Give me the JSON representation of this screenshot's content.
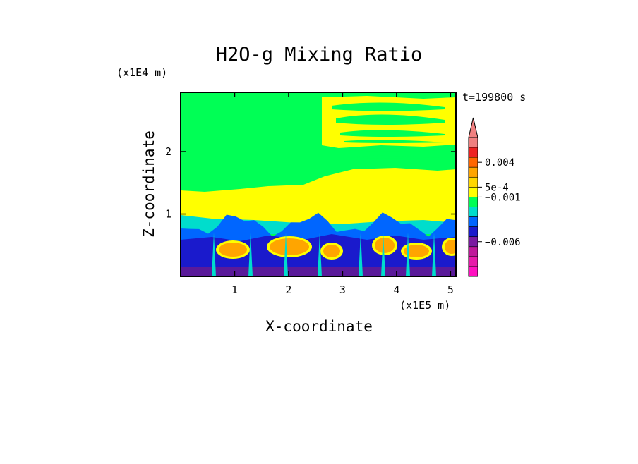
{
  "chart_data": {
    "type": "heatmap",
    "title": "H2O-g Mixing Ratio",
    "xlabel": "X-coordinate",
    "ylabel": "Z-coordinate",
    "x_unit": "(x1E5 m)",
    "y_unit": "(x1E4 m)",
    "time_label": "t=199800 s",
    "xlim": [
      0.0,
      5.1
    ],
    "ylim": [
      0.0,
      2.95
    ],
    "x_ticks": [
      {
        "value": 1,
        "label": "1"
      },
      {
        "value": 2,
        "label": "2"
      },
      {
        "value": 3,
        "label": "3"
      },
      {
        "value": 4,
        "label": "4"
      },
      {
        "value": 5,
        "label": "5"
      }
    ],
    "y_ticks": [
      {
        "value": 1,
        "label": "1"
      },
      {
        "value": 2,
        "label": "2"
      }
    ],
    "colorbar": {
      "levels": [
        "#f08080",
        "#ee2222",
        "#ff6600",
        "#ffa500",
        "#ffd700",
        "#ffff00",
        "#00ff55",
        "#00ddcc",
        "#0066ff",
        "#1a1acc",
        "#7a1aa0",
        "#c0189a",
        "#e81aaa",
        "#ff10c0"
      ],
      "labels": [
        {
          "value": "0.004",
          "band": 2.5
        },
        {
          "value": "5e-4",
          "band": 5
        },
        {
          "value": "−0.001",
          "band": 6
        },
        {
          "value": "−0.006",
          "band": 10.5
        }
      ]
    },
    "regions": {
      "background": "#00ff55",
      "upper_yellow": "#ffff00",
      "lower_blue": "#1a1acc",
      "mid_blue": "#0066ff",
      "cyan": "#00ddcc",
      "orange": "#ffa500",
      "deep_purple": "#5a1a9a"
    }
  }
}
